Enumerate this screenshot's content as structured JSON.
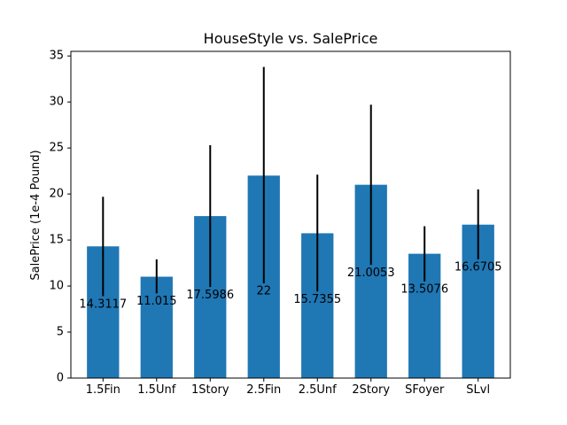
{
  "chart_data": {
    "type": "bar",
    "title": "HouseStyle vs. SalePrice",
    "xlabel": "",
    "ylabel": "SalePrice (1e-4 Pound)",
    "categories": [
      "1.5Fin",
      "1.5Unf",
      "1Story",
      "2.5Fin",
      "2.5Unf",
      "2Story",
      "SFoyer",
      "SLvl"
    ],
    "values": [
      14.3117,
      11.015,
      17.5986,
      22,
      15.7355,
      21.0053,
      13.5076,
      16.6705
    ],
    "data_labels": [
      "14.3117",
      "11.015",
      "17.5986",
      "22",
      "15.7355",
      "21.0053",
      "13.5076",
      "16.6705"
    ],
    "error_bars": [
      [
        8.9,
        19.7
      ],
      [
        9.2,
        12.9
      ],
      [
        9.9,
        25.3
      ],
      [
        10.3,
        33.8
      ],
      [
        9.4,
        22.1
      ],
      [
        12.3,
        29.7
      ],
      [
        10.5,
        16.5
      ],
      [
        12.9,
        20.5
      ]
    ],
    "ylim": [
      0,
      35.5
    ],
    "yticks": [
      0,
      5,
      10,
      15,
      20,
      25,
      30,
      35
    ],
    "bar_color": "#1f77b4",
    "error_color": "#000000",
    "grid": false,
    "legend": "none"
  }
}
